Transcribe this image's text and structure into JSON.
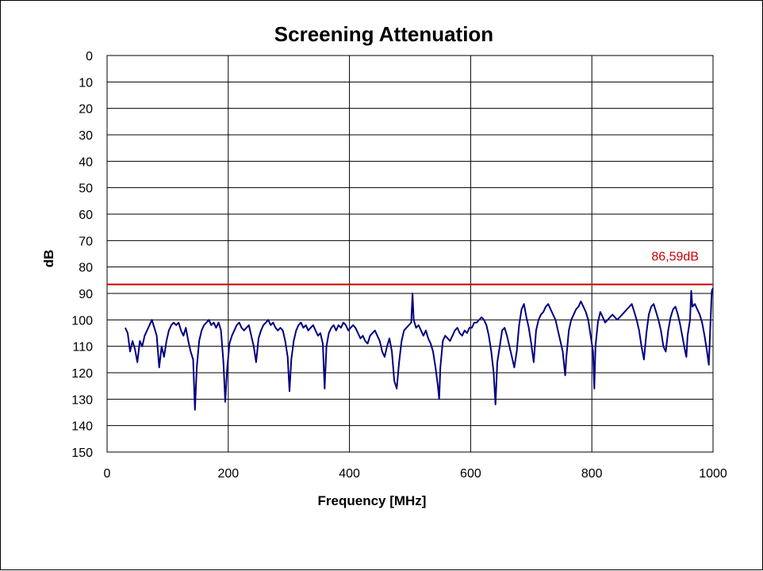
{
  "chart_data": {
    "type": "line",
    "title": "Screening Attenuation",
    "xlabel": "Frequency  [MHz]",
    "ylabel": "dB",
    "xlim": [
      0,
      1000
    ],
    "ylim": [
      0,
      150
    ],
    "y_inverted": true,
    "grid": true,
    "legend": "none",
    "x_ticks": [
      "0",
      "200",
      "400",
      "600",
      "800",
      "1000"
    ],
    "y_ticks": [
      "0",
      "10",
      "20",
      "30",
      "40",
      "50",
      "60",
      "70",
      "80",
      "90",
      "100",
      "110",
      "120",
      "130",
      "140",
      "150"
    ],
    "series": [
      {
        "color": "#000080",
        "points": [
          [
            30,
            103
          ],
          [
            34,
            105
          ],
          [
            38,
            112
          ],
          [
            42,
            108
          ],
          [
            46,
            111
          ],
          [
            50,
            116
          ],
          [
            54,
            108
          ],
          [
            58,
            110
          ],
          [
            62,
            106
          ],
          [
            66,
            104
          ],
          [
            70,
            102
          ],
          [
            74,
            100
          ],
          [
            78,
            103
          ],
          [
            82,
            106
          ],
          [
            86,
            118
          ],
          [
            90,
            110
          ],
          [
            94,
            114
          ],
          [
            98,
            108
          ],
          [
            102,
            104
          ],
          [
            106,
            102
          ],
          [
            110,
            101
          ],
          [
            114,
            102
          ],
          [
            118,
            101
          ],
          [
            122,
            104
          ],
          [
            126,
            106
          ],
          [
            130,
            103
          ],
          [
            134,
            108
          ],
          [
            138,
            112
          ],
          [
            142,
            115
          ],
          [
            145,
            134
          ],
          [
            148,
            118
          ],
          [
            152,
            108
          ],
          [
            156,
            104
          ],
          [
            160,
            102
          ],
          [
            164,
            101
          ],
          [
            168,
            100
          ],
          [
            172,
            102
          ],
          [
            176,
            101
          ],
          [
            180,
            103
          ],
          [
            184,
            101
          ],
          [
            188,
            104
          ],
          [
            192,
            116
          ],
          [
            195,
            131
          ],
          [
            198,
            119
          ],
          [
            202,
            109
          ],
          [
            206,
            106
          ],
          [
            210,
            104
          ],
          [
            214,
            102
          ],
          [
            218,
            101
          ],
          [
            222,
            103
          ],
          [
            226,
            104
          ],
          [
            230,
            103
          ],
          [
            234,
            102
          ],
          [
            238,
            106
          ],
          [
            242,
            110
          ],
          [
            246,
            116
          ],
          [
            250,
            107
          ],
          [
            254,
            104
          ],
          [
            258,
            102
          ],
          [
            262,
            101
          ],
          [
            266,
            100
          ],
          [
            270,
            102
          ],
          [
            274,
            101
          ],
          [
            278,
            103
          ],
          [
            282,
            104
          ],
          [
            286,
            103
          ],
          [
            290,
            104
          ],
          [
            294,
            108
          ],
          [
            298,
            114
          ],
          [
            301,
            127
          ],
          [
            304,
            115
          ],
          [
            308,
            108
          ],
          [
            312,
            104
          ],
          [
            316,
            102
          ],
          [
            320,
            101
          ],
          [
            324,
            103
          ],
          [
            328,
            102
          ],
          [
            332,
            104
          ],
          [
            336,
            103
          ],
          [
            340,
            102
          ],
          [
            344,
            104
          ],
          [
            348,
            106
          ],
          [
            352,
            105
          ],
          [
            356,
            109
          ],
          [
            359,
            126
          ],
          [
            362,
            110
          ],
          [
            366,
            105
          ],
          [
            370,
            103
          ],
          [
            374,
            102
          ],
          [
            378,
            104
          ],
          [
            382,
            102
          ],
          [
            386,
            103
          ],
          [
            390,
            101
          ],
          [
            394,
            102
          ],
          [
            398,
            104
          ],
          [
            402,
            103
          ],
          [
            406,
            102
          ],
          [
            410,
            103
          ],
          [
            414,
            105
          ],
          [
            418,
            107
          ],
          [
            422,
            106
          ],
          [
            426,
            108
          ],
          [
            430,
            109
          ],
          [
            434,
            106
          ],
          [
            438,
            105
          ],
          [
            442,
            104
          ],
          [
            446,
            106
          ],
          [
            450,
            108
          ],
          [
            454,
            112
          ],
          [
            458,
            114
          ],
          [
            462,
            110
          ],
          [
            466,
            107
          ],
          [
            470,
            112
          ],
          [
            474,
            123
          ],
          [
            478,
            126
          ],
          [
            482,
            116
          ],
          [
            486,
            108
          ],
          [
            490,
            104
          ],
          [
            494,
            103
          ],
          [
            498,
            102
          ],
          [
            502,
            101
          ],
          [
            504,
            90
          ],
          [
            506,
            100
          ],
          [
            510,
            103
          ],
          [
            514,
            102
          ],
          [
            518,
            104
          ],
          [
            522,
            106
          ],
          [
            526,
            104
          ],
          [
            530,
            107
          ],
          [
            534,
            109
          ],
          [
            538,
            112
          ],
          [
            542,
            118
          ],
          [
            546,
            125
          ],
          [
            548,
            130
          ],
          [
            550,
            118
          ],
          [
            554,
            108
          ],
          [
            558,
            106
          ],
          [
            562,
            107
          ],
          [
            566,
            108
          ],
          [
            570,
            106
          ],
          [
            574,
            104
          ],
          [
            578,
            103
          ],
          [
            582,
            105
          ],
          [
            586,
            106
          ],
          [
            590,
            104
          ],
          [
            594,
            105
          ],
          [
            598,
            103
          ],
          [
            602,
            103
          ],
          [
            606,
            101
          ],
          [
            610,
            101
          ],
          [
            614,
            100
          ],
          [
            618,
            99
          ],
          [
            622,
            100
          ],
          [
            626,
            102
          ],
          [
            630,
            106
          ],
          [
            634,
            112
          ],
          [
            638,
            120
          ],
          [
            641,
            132
          ],
          [
            644,
            116
          ],
          [
            648,
            110
          ],
          [
            652,
            104
          ],
          [
            656,
            103
          ],
          [
            660,
            106
          ],
          [
            664,
            110
          ],
          [
            668,
            114
          ],
          [
            672,
            118
          ],
          [
            676,
            112
          ],
          [
            680,
            102
          ],
          [
            684,
            96
          ],
          [
            688,
            94
          ],
          [
            692,
            99
          ],
          [
            696,
            103
          ],
          [
            700,
            109
          ],
          [
            704,
            116
          ],
          [
            708,
            104
          ],
          [
            712,
            100
          ],
          [
            716,
            98
          ],
          [
            720,
            97
          ],
          [
            724,
            95
          ],
          [
            728,
            94
          ],
          [
            732,
            96
          ],
          [
            736,
            98
          ],
          [
            740,
            100
          ],
          [
            744,
            104
          ],
          [
            748,
            108
          ],
          [
            752,
            112
          ],
          [
            756,
            121
          ],
          [
            758,
            114
          ],
          [
            762,
            104
          ],
          [
            766,
            100
          ],
          [
            770,
            98
          ],
          [
            774,
            96
          ],
          [
            778,
            95
          ],
          [
            782,
            93
          ],
          [
            786,
            95
          ],
          [
            790,
            97
          ],
          [
            794,
            100
          ],
          [
            798,
            106
          ],
          [
            802,
            112
          ],
          [
            804,
            126
          ],
          [
            806,
            110
          ],
          [
            810,
            101
          ],
          [
            814,
            97
          ],
          [
            818,
            99
          ],
          [
            822,
            101
          ],
          [
            826,
            100
          ],
          [
            830,
            99
          ],
          [
            834,
            98
          ],
          [
            838,
            99
          ],
          [
            842,
            100
          ],
          [
            846,
            99
          ],
          [
            850,
            98
          ],
          [
            854,
            97
          ],
          [
            858,
            96
          ],
          [
            862,
            95
          ],
          [
            866,
            94
          ],
          [
            870,
            97
          ],
          [
            874,
            100
          ],
          [
            878,
            104
          ],
          [
            882,
            110
          ],
          [
            886,
            115
          ],
          [
            890,
            105
          ],
          [
            894,
            98
          ],
          [
            898,
            95
          ],
          [
            902,
            94
          ],
          [
            906,
            97
          ],
          [
            910,
            100
          ],
          [
            914,
            104
          ],
          [
            918,
            110
          ],
          [
            922,
            112
          ],
          [
            926,
            104
          ],
          [
            930,
            99
          ],
          [
            934,
            96
          ],
          [
            938,
            95
          ],
          [
            942,
            98
          ],
          [
            946,
            102
          ],
          [
            950,
            107
          ],
          [
            954,
            112
          ],
          [
            956,
            114
          ],
          [
            958,
            106
          ],
          [
            962,
            100
          ],
          [
            964,
            89
          ],
          [
            966,
            95
          ],
          [
            970,
            94
          ],
          [
            974,
            96
          ],
          [
            978,
            98
          ],
          [
            982,
            101
          ],
          [
            986,
            106
          ],
          [
            990,
            112
          ],
          [
            993,
            117
          ],
          [
            996,
            100
          ],
          [
            998,
            89
          ],
          [
            1000,
            88
          ]
        ]
      }
    ],
    "reference_lines": [
      {
        "y": 86.59,
        "label": "86,59dB",
        "color": "#cc0000"
      }
    ]
  }
}
